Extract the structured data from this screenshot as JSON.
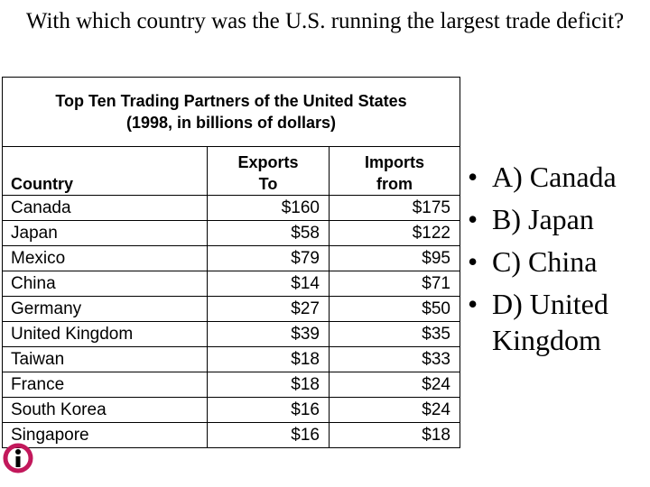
{
  "title": "With which country was the U.S. running the largest trade deficit?",
  "table": {
    "caption": [
      "Top Ten Trading Partners of the United States",
      "(1998, in billions of dollars)"
    ],
    "headers": [
      "Country",
      "Exports To",
      "Imports from"
    ],
    "rows": [
      [
        "Canada",
        "$160",
        "$175"
      ],
      [
        "Japan",
        "$58",
        "$122"
      ],
      [
        "Mexico",
        "$79",
        "$95"
      ],
      [
        "China",
        "$14",
        "$71"
      ],
      [
        "Germany",
        "$27",
        "$50"
      ],
      [
        "United Kingdom",
        "$39",
        "$35"
      ],
      [
        "Taiwan",
        "$18",
        "$33"
      ],
      [
        "France",
        "$18",
        "$24"
      ],
      [
        "South Korea",
        "$16",
        "$24"
      ],
      [
        "Singapore",
        "$16",
        "$18"
      ]
    ]
  },
  "options": [
    "A) Canada",
    "B) Japan",
    "C) China",
    "D) United Kingdom"
  ]
}
